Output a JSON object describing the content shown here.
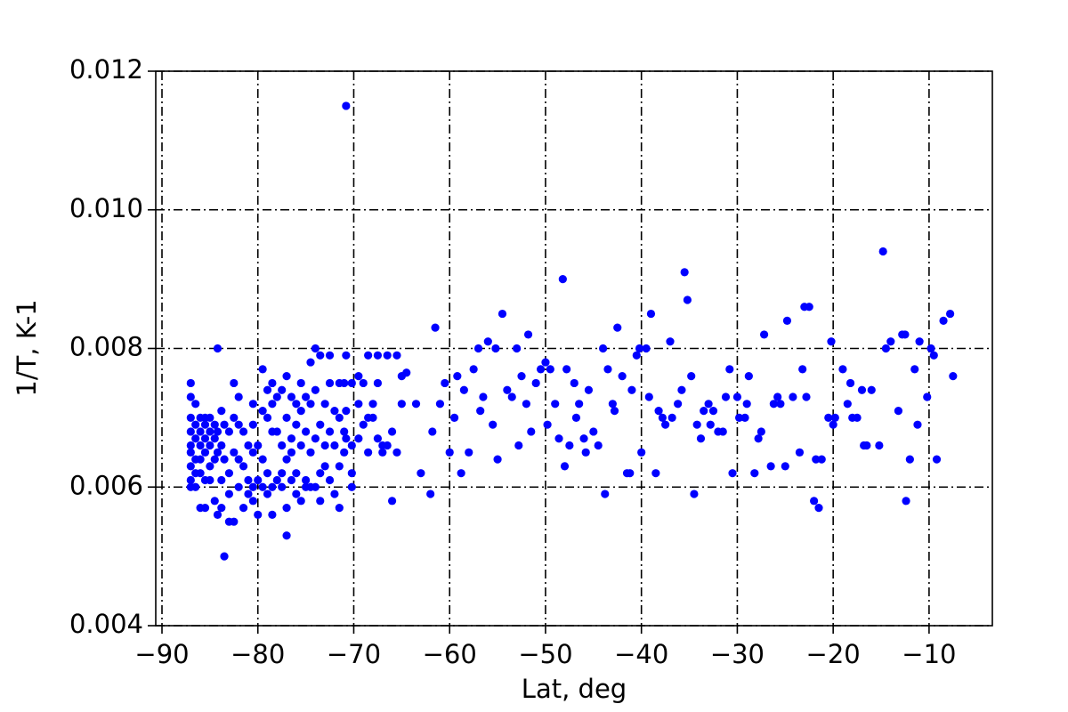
{
  "chart_data": {
    "type": "scatter",
    "x_label": "Lat, deg",
    "y_label": "1/T, K-1",
    "color": "#0000ff",
    "grid": true,
    "xlim": [
      -90.65,
      -3.4
    ],
    "ylim": [
      0.004,
      0.012
    ],
    "xticks": [
      {
        "value": -90,
        "label": "−90"
      },
      {
        "value": -80,
        "label": "−80"
      },
      {
        "value": -70,
        "label": "−70"
      },
      {
        "value": -60,
        "label": "−60"
      },
      {
        "value": -50,
        "label": "−50"
      },
      {
        "value": -40,
        "label": "−40"
      },
      {
        "value": -30,
        "label": "−30"
      },
      {
        "value": -20,
        "label": "−20"
      },
      {
        "value": -10,
        "label": "−10"
      }
    ],
    "yticks": [
      0.004,
      0.006,
      0.008,
      {
        "value": 0.01,
        "label": "0.010"
      },
      0.012
    ],
    "x": [
      -87,
      -87,
      -87,
      -87,
      -87,
      -87,
      -87,
      -87,
      -87,
      -86.5,
      -86.5,
      -86.5,
      -86.5,
      -86.5,
      -86.5,
      -86,
      -86,
      -86,
      -86,
      -86,
      -86,
      -85.5,
      -85.5,
      -85.5,
      -85.5,
      -85.5,
      -85.5,
      -85,
      -85,
      -85,
      -85,
      -85,
      -84.5,
      -84.5,
      -84.5,
      -84.5,
      -84.2,
      -84.2,
      -84.2,
      -84.2,
      -83.8,
      -83.8,
      -83.8,
      -83.8,
      -83.5,
      -83.5,
      -83.5,
      -83,
      -83,
      -83,
      -83,
      -82.5,
      -82.5,
      -82.5,
      -82.5,
      -82,
      -82,
      -82,
      -82,
      -81.5,
      -81.5,
      -81.5,
      -81,
      -81,
      -81,
      -80.5,
      -80.5,
      -80.5,
      -80.5,
      -80.5,
      -80,
      -80,
      -80,
      -79.5,
      -79.5,
      -79.5,
      -79.5,
      -79,
      -79,
      -79,
      -79,
      -78.5,
      -78.5,
      -78.5,
      -78.5,
      -78.5,
      -78,
      -78,
      -78,
      -77.5,
      -77.5,
      -77.5,
      -77.5,
      -77,
      -77,
      -77,
      -77,
      -77,
      -76.5,
      -76.5,
      -76.5,
      -76.5,
      -76,
      -76,
      -76,
      -76,
      -75.5,
      -75.5,
      -75.5,
      -75.5,
      -75,
      -75,
      -75,
      -75,
      -74.5,
      -74.5,
      -74.5,
      -74.5,
      -74,
      -74,
      -74,
      -74,
      -73.5,
      -73.5,
      -73.5,
      -73.5,
      -73,
      -73,
      -73,
      -72.5,
      -72.5,
      -72.5,
      -72.5,
      -72,
      -72,
      -72,
      -71.5,
      -71.5,
      -71.5,
      -71.5,
      -71,
      -71,
      -71,
      -70.8,
      -70.8,
      -70.8,
      -70.8,
      -70.2,
      -70.2,
      -70.2,
      -70.2,
      -69.5,
      -69.5,
      -69.5,
      -69,
      -69,
      -68.5,
      -68.5,
      -68.5,
      -68,
      -68,
      -67.5,
      -67.5,
      -67.5,
      -67,
      -67,
      -66.5,
      -66.5,
      -66,
      -66,
      -65.5,
      -65.5,
      -65,
      -65,
      -61.5,
      -64.5,
      -63.5,
      -63,
      -62,
      -61.8,
      -61,
      -60.5,
      -60,
      -59.5,
      -59.2,
      -58.8,
      -58.5,
      -58,
      -57.5,
      -57,
      -56.8,
      -56.5,
      -56,
      -55.5,
      -55.2,
      -55,
      -54.5,
      -54,
      -53.5,
      -53,
      -52.8,
      -52.5,
      -52,
      -51.8,
      -51.5,
      -51,
      -50.5,
      -50,
      -49.8,
      -49.5,
      -49,
      -48.6,
      -48.2,
      -48,
      -47.5,
      -47.8,
      -47,
      -46.8,
      -46.5,
      -46,
      -45.8,
      -45.5,
      -45,
      -44.5,
      -44,
      -43.8,
      -43.5,
      -43,
      -42.8,
      -42.5,
      -42,
      -41.5,
      -41.2,
      -41,
      -40.5,
      -40.2,
      -40,
      -39.5,
      -39.2,
      -39,
      -38.5,
      -38.2,
      -37.8,
      -37.5,
      -37,
      -36.8,
      -36.2,
      -35.8,
      -35.5,
      -35.2,
      -34.8,
      -34.5,
      -34.2,
      -33.8,
      -33.5,
      -33,
      -32.8,
      -32.5,
      -32,
      -31.5,
      -31.2,
      -30.8,
      -30.5,
      -30,
      -29.8,
      -29.2,
      -29,
      -28.8,
      -28.2,
      -27.8,
      -27.5,
      -27.2,
      -26.5,
      -26.2,
      -25.8,
      -25.5,
      -25,
      -24.8,
      -24.2,
      -23.5,
      -23.2,
      -23,
      -22.5,
      -22.8,
      -22,
      -21.8,
      -21.5,
      -21.2,
      -20.5,
      -20.2,
      -20,
      -19.8,
      -19,
      -18.5,
      -18.2,
      -18,
      -17.5,
      -17,
      -16.8,
      -16.5,
      -16,
      -15.2,
      -14.8,
      -14.5,
      -14,
      -13.2,
      -12.8,
      -12.5,
      -12.4,
      -12,
      -11.5,
      -11.2,
      -11,
      -10.2,
      -9.8,
      -9.5,
      -9.2,
      -8.5,
      -7.8,
      -7.5
    ],
    "values": [
      0.0075,
      0.0073,
      0.007,
      0.0068,
      0.0066,
      0.0065,
      0.0063,
      0.0061,
      0.006,
      0.0072,
      0.0069,
      0.0067,
      0.0064,
      0.0062,
      0.006,
      0.007,
      0.0068,
      0.0066,
      0.0064,
      0.0057,
      0.0062,
      0.0069,
      0.0067,
      0.0065,
      0.0061,
      0.0057,
      0.007,
      0.0068,
      0.0066,
      0.0063,
      0.007,
      0.0061,
      0.0069,
      0.0067,
      0.0064,
      0.0058,
      0.008,
      0.0068,
      0.0056,
      0.0065,
      0.0071,
      0.0066,
      0.0061,
      0.0057,
      0.005,
      0.0069,
      0.0064,
      0.0068,
      0.0062,
      0.0055,
      0.0059,
      0.0075,
      0.007,
      0.0065,
      0.0055,
      0.0073,
      0.0069,
      0.0064,
      0.006,
      0.0068,
      0.0063,
      0.0057,
      0.0066,
      0.0061,
      0.0059,
      0.0072,
      0.0069,
      0.0065,
      0.0058,
      0.006,
      0.0066,
      0.0061,
      0.0056,
      0.0077,
      0.0071,
      0.0064,
      0.006,
      0.0074,
      0.007,
      0.0059,
      0.0062,
      0.0075,
      0.0072,
      0.0068,
      0.006,
      0.0056,
      0.0073,
      0.0068,
      0.0061,
      0.0074,
      0.0066,
      0.0062,
      0.006,
      0.0076,
      0.0053,
      0.0064,
      0.0057,
      0.007,
      0.0073,
      0.0067,
      0.0065,
      0.0061,
      0.0072,
      0.0069,
      0.0062,
      0.0059,
      0.0075,
      0.0071,
      0.0066,
      0.0058,
      0.0073,
      0.0068,
      0.0061,
      0.006,
      0.0078,
      0.0072,
      0.0065,
      0.006,
      0.008,
      0.0074,
      0.0067,
      0.006,
      0.0079,
      0.0069,
      0.0062,
      0.0058,
      0.0072,
      0.0066,
      0.0063,
      0.0079,
      0.0075,
      0.0068,
      0.0061,
      0.0071,
      0.0066,
      0.0059,
      0.0075,
      0.007,
      0.0063,
      0.0057,
      0.0075,
      0.0068,
      0.0065,
      0.0115,
      0.0079,
      0.0071,
      0.0067,
      0.0075,
      0.0066,
      0.006,
      0.0062,
      0.0076,
      0.0072,
      0.0067,
      0.0075,
      0.0069,
      0.0079,
      0.007,
      0.0065,
      0.0072,
      0.007,
      0.0079,
      0.0075,
      0.0067,
      0.0066,
      0.0065,
      0.0079,
      0.0066,
      0.0068,
      0.0058,
      0.0079,
      0.0065,
      0.0076,
      0.0072,
      0.0083,
      0.00765,
      0.0072,
      0.0062,
      0.0059,
      0.0068,
      0.0072,
      0.0075,
      0.0065,
      0.007,
      0.0076,
      0.0062,
      0.0074,
      0.0065,
      0.0077,
      0.008,
      0.0071,
      0.0073,
      0.0081,
      0.0069,
      0.008,
      0.0064,
      0.0085,
      0.0074,
      0.0073,
      0.008,
      0.0066,
      0.0076,
      0.0072,
      0.0082,
      0.0068,
      0.0075,
      0.0077,
      0.0078,
      0.0069,
      0.0077,
      0.0072,
      0.0067,
      0.009,
      0.0063,
      0.0066,
      0.0077,
      0.0075,
      0.007,
      0.0072,
      0.0067,
      0.0065,
      0.0074,
      0.0068,
      0.0066,
      0.008,
      0.0059,
      0.0077,
      0.0072,
      0.0071,
      0.0083,
      0.0076,
      0.0062,
      0.0062,
      0.0074,
      0.0079,
      0.008,
      0.0065,
      0.008,
      0.0073,
      0.0085,
      0.0062,
      0.0071,
      0.007,
      0.0069,
      0.0081,
      0.007,
      0.0072,
      0.0074,
      0.0091,
      0.0087,
      0.0076,
      0.0059,
      0.0069,
      0.0067,
      0.0071,
      0.0072,
      0.0069,
      0.0071,
      0.0068,
      0.0068,
      0.0073,
      0.0077,
      0.0062,
      0.0073,
      0.007,
      0.007,
      0.0072,
      0.0076,
      0.0062,
      0.0067,
      0.0068,
      0.0082,
      0.0063,
      0.0072,
      0.0073,
      0.0072,
      0.0063,
      0.0084,
      0.0073,
      0.0065,
      0.0077,
      0.0086,
      0.0086,
      0.0073,
      0.0058,
      0.0064,
      0.0057,
      0.0064,
      0.007,
      0.0081,
      0.0069,
      0.007,
      0.0077,
      0.0072,
      0.0075,
      0.007,
      0.007,
      0.0074,
      0.0066,
      0.0066,
      0.0074,
      0.0066,
      0.0094,
      0.008,
      0.0081,
      0.0071,
      0.0082,
      0.0082,
      0.0058,
      0.0064,
      0.0077,
      0.0069,
      0.0081,
      0.0073,
      0.008,
      0.0079,
      0.0064,
      0.0084,
      0.0085,
      0.0076
    ]
  }
}
